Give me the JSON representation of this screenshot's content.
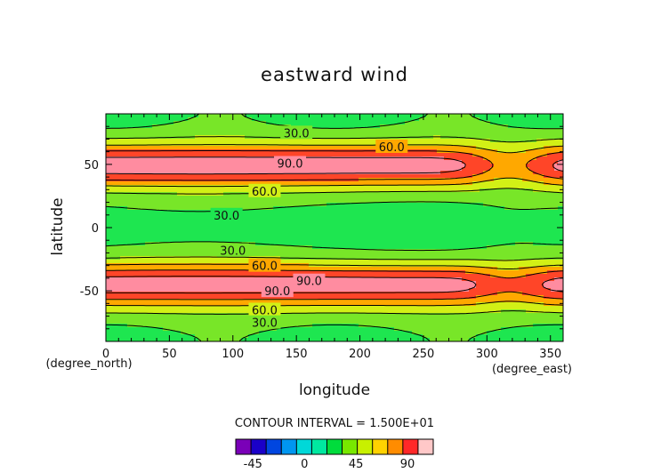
{
  "chart_data": {
    "type": "heatmap",
    "subtype": "filled-contour",
    "title": "eastward wind",
    "xlabel": "longitude",
    "ylabel": "latitude",
    "x_unit": "(degree_east)",
    "y_unit": "(degree_north)",
    "xlim": [
      0,
      360
    ],
    "ylim": [
      -90,
      90
    ],
    "xticks": [
      0,
      50,
      100,
      150,
      200,
      250,
      300,
      350
    ],
    "yticks": [
      -50,
      0,
      50
    ],
    "contour_interval_text": "CONTOUR INTERVAL = 1.500E+01",
    "contour_interval": 15,
    "contour_labels": [
      "30.0",
      "60.0",
      "90.0",
      "60.0",
      "30.0",
      "30.0",
      "60.0",
      "90.0",
      "90.0",
      "60.0",
      "30.0"
    ],
    "colorbar_ticks": [
      -45,
      0,
      45,
      90
    ],
    "colorbar_colors": [
      "#7a00b8",
      "#1a00c8",
      "#0046e0",
      "#0096f0",
      "#00d8d8",
      "#00e8a0",
      "#00dc3c",
      "#78e800",
      "#c8f000",
      "#ffd200",
      "#ff8c00",
      "#ff2828",
      "#ffc8c8"
    ],
    "level_colors": {
      "-15": "#00dddd",
      "0": "#00f0a0",
      "15": "#1ee650",
      "30": "#78e628",
      "45": "#d2f016",
      "60": "#ffa800",
      "75": "#ff4528",
      "90": "#ff8ca0"
    }
  }
}
